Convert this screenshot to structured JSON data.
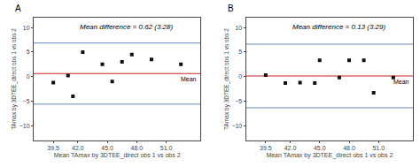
{
  "chart_data": [
    {
      "type": "scatter",
      "label": "A",
      "title": "Mean difference = 0.62 (3.28)",
      "x": [
        39.5,
        41.0,
        41.5,
        42.5,
        44.5,
        45.5,
        46.5,
        47.5,
        49.5,
        52.5
      ],
      "values": [
        -1.2,
        0.2,
        -4.0,
        5.0,
        2.5,
        -1.0,
        3.0,
        4.5,
        3.5,
        2.5
      ],
      "color": "#111111",
      "marker": "square",
      "mean_line": {
        "value": 0.62,
        "label": "Mean",
        "color": "#cc2222"
      },
      "loa_lines": {
        "values": [
          6.84,
          -5.6
        ],
        "color": "#6688bb"
      },
      "xlim": [
        37.5,
        54.5
      ],
      "ylim": [
        -13.0,
        12.0
      ],
      "xticks": [
        39.5,
        {
          "value": 42.0,
          "label": "42.0"
        },
        {
          "value": 45.0,
          "label": "45.0"
        },
        {
          "value": 48.0,
          "label": "48.0"
        },
        {
          "value": 51.0,
          "label": "51.0"
        }
      ],
      "yticks": [
        -10,
        -5,
        0,
        5,
        10
      ],
      "xlabel": "Mean TAmax by 3DTEE_direct obs 1 vs obs 2",
      "ylabel": "TAmax by 3DTEE_direct obs 1 vs obs 2",
      "grid": false
    },
    {
      "type": "scatter",
      "label": "B",
      "title": "Mean difference = 0.13 (3.29)",
      "x": [
        39.5,
        41.5,
        43.0,
        44.5,
        45.0,
        47.0,
        48.0,
        49.5,
        50.5,
        52.5
      ],
      "values": [
        0.3,
        -1.3,
        -1.2,
        -1.3,
        3.3,
        -0.2,
        3.3,
        3.3,
        -3.3,
        -0.2
      ],
      "color": "#111111",
      "marker": "square",
      "mean_line": {
        "value": 0.13,
        "label": "Mean",
        "color": "#cc2222"
      },
      "loa_lines": {
        "values": [
          6.6,
          -6.34
        ],
        "color": "#6688bb"
      },
      "xlim": [
        37.5,
        54.5
      ],
      "ylim": [
        -13.0,
        12.0
      ],
      "xticks": [
        39.5,
        {
          "value": 42.0,
          "label": "42.0"
        },
        {
          "value": 45.0,
          "label": "45.0"
        },
        {
          "value": 48.0,
          "label": "48.0"
        },
        {
          "value": 51.0,
          "label": "51.0"
        }
      ],
      "yticks": [
        -10,
        -5,
        0,
        5,
        10
      ],
      "xlabel": "Mean TAmax by 3DTEE_direct obs 1 vs obs 2",
      "ylabel": "TAmax by 3DTEE_direct obs 1 vs obs 2",
      "grid": false
    }
  ]
}
